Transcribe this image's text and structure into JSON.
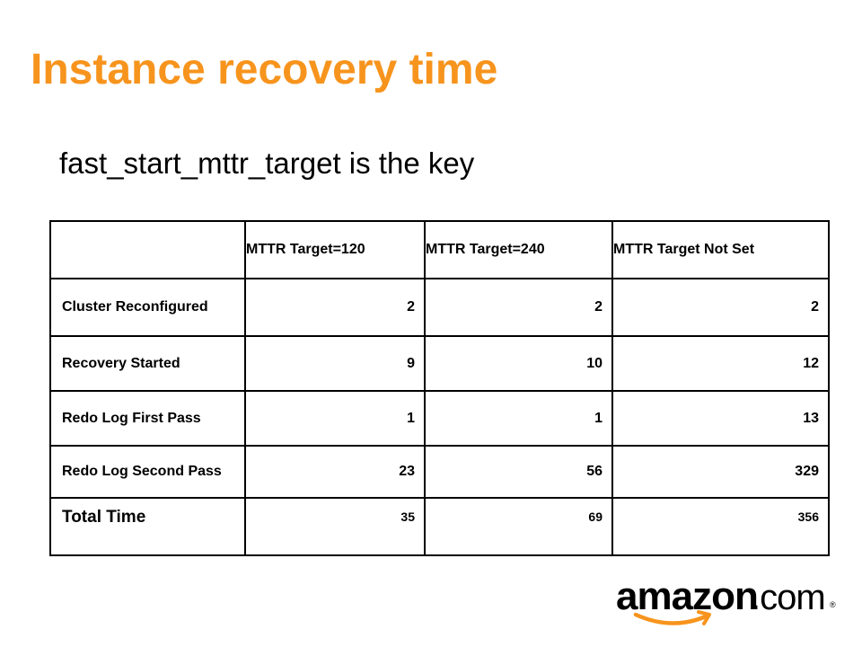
{
  "slide": {
    "title": "Instance recovery time",
    "subtitle": "fast_start_mttr_target is the key"
  },
  "table": {
    "columns": [
      "",
      "MTTR Target=120",
      "MTTR Target=240",
      "MTTR Target Not Set"
    ],
    "rows": [
      {
        "label": "Cluster Reconfigured",
        "values": [
          "2",
          "2",
          "2"
        ]
      },
      {
        "label": "Recovery Started",
        "values": [
          "9",
          "10",
          "12"
        ]
      },
      {
        "label": "Redo Log First Pass",
        "values": [
          "1",
          "1",
          "13"
        ]
      },
      {
        "label": "Redo Log Second Pass",
        "values": [
          "23",
          "56",
          "329"
        ]
      }
    ],
    "total": {
      "label": "Total Time",
      "values": [
        "35",
        "69",
        "356"
      ]
    }
  },
  "logo": {
    "wordmark": "amazon",
    "suffix": ".com",
    "mark": "®",
    "smile_color": "#f7941d"
  }
}
